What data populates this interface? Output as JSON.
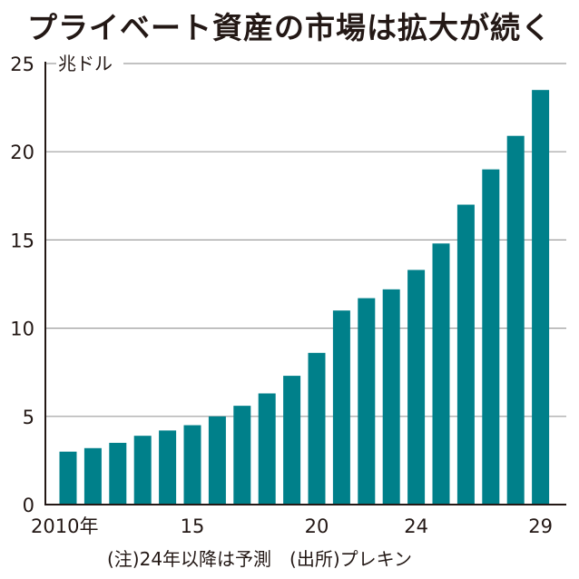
{
  "title": "プライベート資産の市場は拡大が続く",
  "note": "(注)24年以降は予測　(出所)プレキン",
  "colors": {
    "bar": "#00808a",
    "grid": "#9e9e9e",
    "axis": "#231815"
  },
  "chart_data": {
    "type": "bar",
    "title": "プライベート資産の市場は拡大が続く",
    "ylabel": "兆ドル",
    "ylim": [
      0,
      25
    ],
    "yticks": [
      0,
      5,
      10,
      15,
      20,
      25
    ],
    "categories": [
      "2010",
      "2011",
      "2012",
      "2013",
      "2014",
      "2015",
      "2016",
      "2017",
      "2018",
      "2019",
      "2020",
      "2021",
      "2022",
      "2023",
      "2024",
      "2025",
      "2026",
      "2027",
      "2028",
      "2029"
    ],
    "values": [
      3.0,
      3.2,
      3.5,
      3.9,
      4.2,
      4.5,
      5.0,
      5.6,
      6.3,
      7.3,
      8.6,
      11.0,
      11.7,
      12.2,
      13.3,
      14.8,
      17.0,
      19.0,
      20.9,
      23.5
    ],
    "xtick_labels": [
      {
        "index": 0,
        "label": "2010年"
      },
      {
        "index": 5,
        "label": "15"
      },
      {
        "index": 10,
        "label": "20"
      },
      {
        "index": 14,
        "label": "24"
      },
      {
        "index": 19,
        "label": "29"
      }
    ],
    "grid": true
  }
}
